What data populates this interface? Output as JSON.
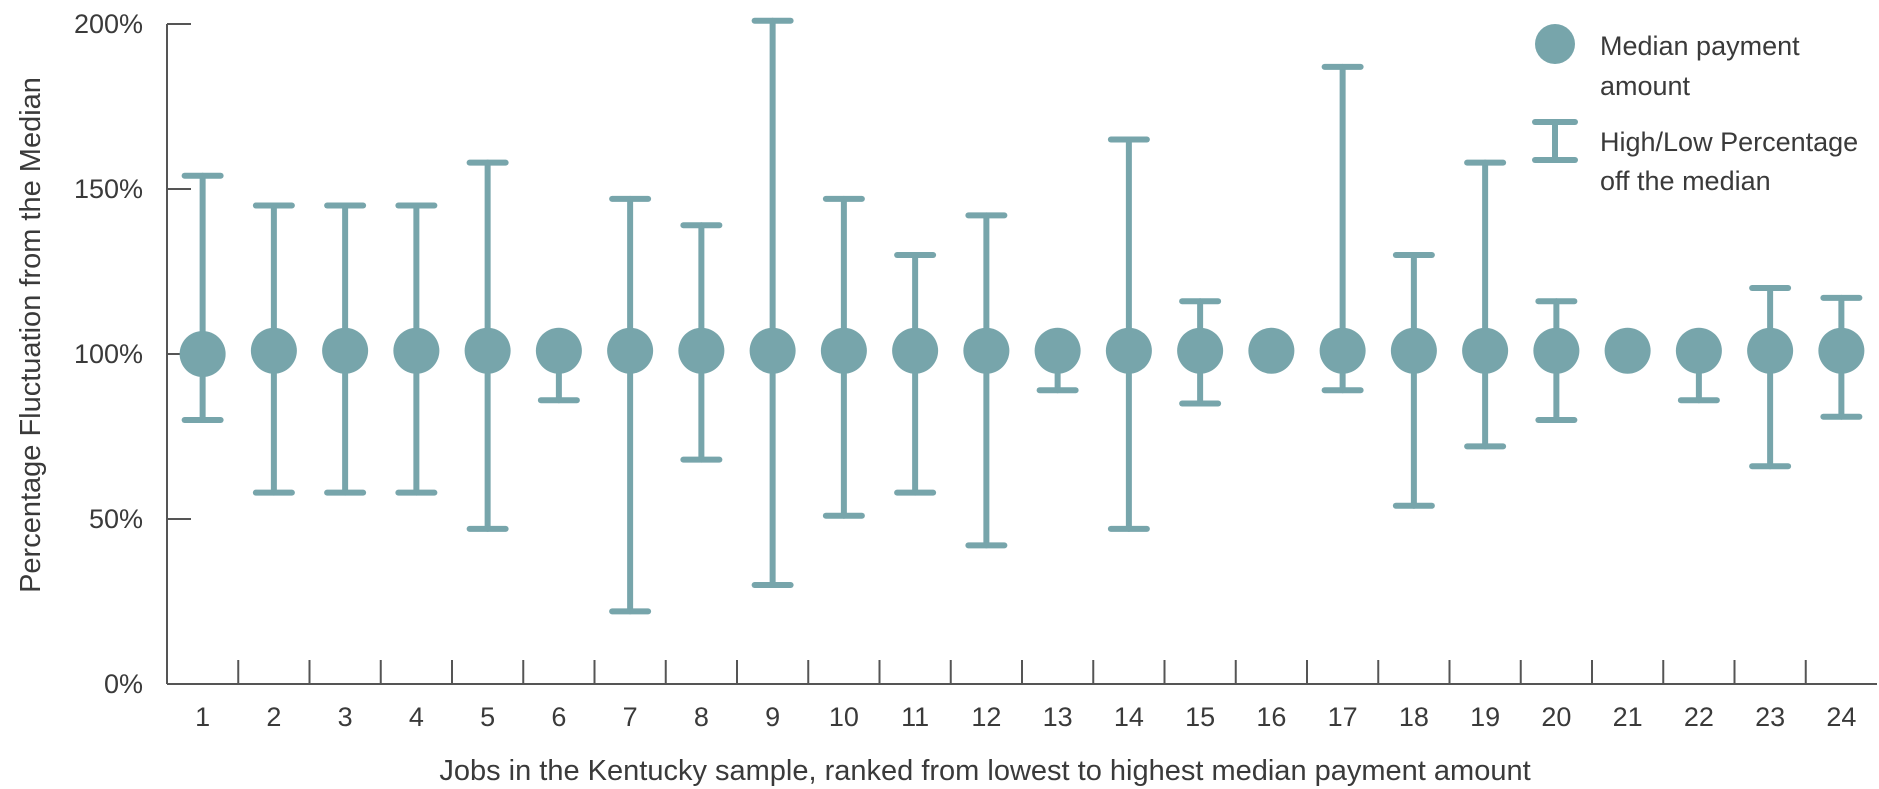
{
  "chart_data": {
    "type": "scatter",
    "subtype": "error-bar",
    "title": "",
    "xlabel": "Jobs in the Kentucky sample, ranked from lowest to highest median payment amount",
    "ylabel": "Percentage Fluctuation from the Median",
    "ylim": [
      0,
      200
    ],
    "y_ticks": [
      "0%",
      "50%",
      "100%",
      "150%",
      "200%"
    ],
    "y_tick_values": [
      0,
      50,
      100,
      150,
      200
    ],
    "grid": false,
    "legend_position": "top-right",
    "colors": {
      "series": "#77a5ab",
      "axis": "#555555",
      "text": "#3a3a3a"
    },
    "legend": {
      "median_label_line1": "Median payment",
      "median_label_line2": "amount",
      "range_label_line1": "High/Low Percentage",
      "range_label_line2": "off the median"
    },
    "categories": [
      "1",
      "2",
      "3",
      "4",
      "5",
      "6",
      "7",
      "8",
      "9",
      "10",
      "11",
      "12",
      "13",
      "14",
      "15",
      "16",
      "17",
      "18",
      "19",
      "20",
      "21",
      "22",
      "23",
      "24"
    ],
    "median": [
      100,
      101,
      101,
      101,
      101,
      101,
      101,
      101,
      101,
      101,
      101,
      101,
      101,
      101,
      101,
      101,
      101,
      101,
      101,
      101,
      101,
      101,
      101,
      101
    ],
    "high": [
      154,
      145,
      145,
      145,
      158,
      101,
      147,
      139,
      201,
      147,
      130,
      142,
      101,
      165,
      116,
      101,
      187,
      130,
      158,
      116,
      101,
      101,
      120,
      117
    ],
    "low": [
      80,
      58,
      58,
      58,
      47,
      86,
      22,
      68,
      30,
      51,
      58,
      42,
      89,
      47,
      85,
      101,
      89,
      54,
      72,
      80,
      101,
      86,
      66,
      81
    ]
  }
}
